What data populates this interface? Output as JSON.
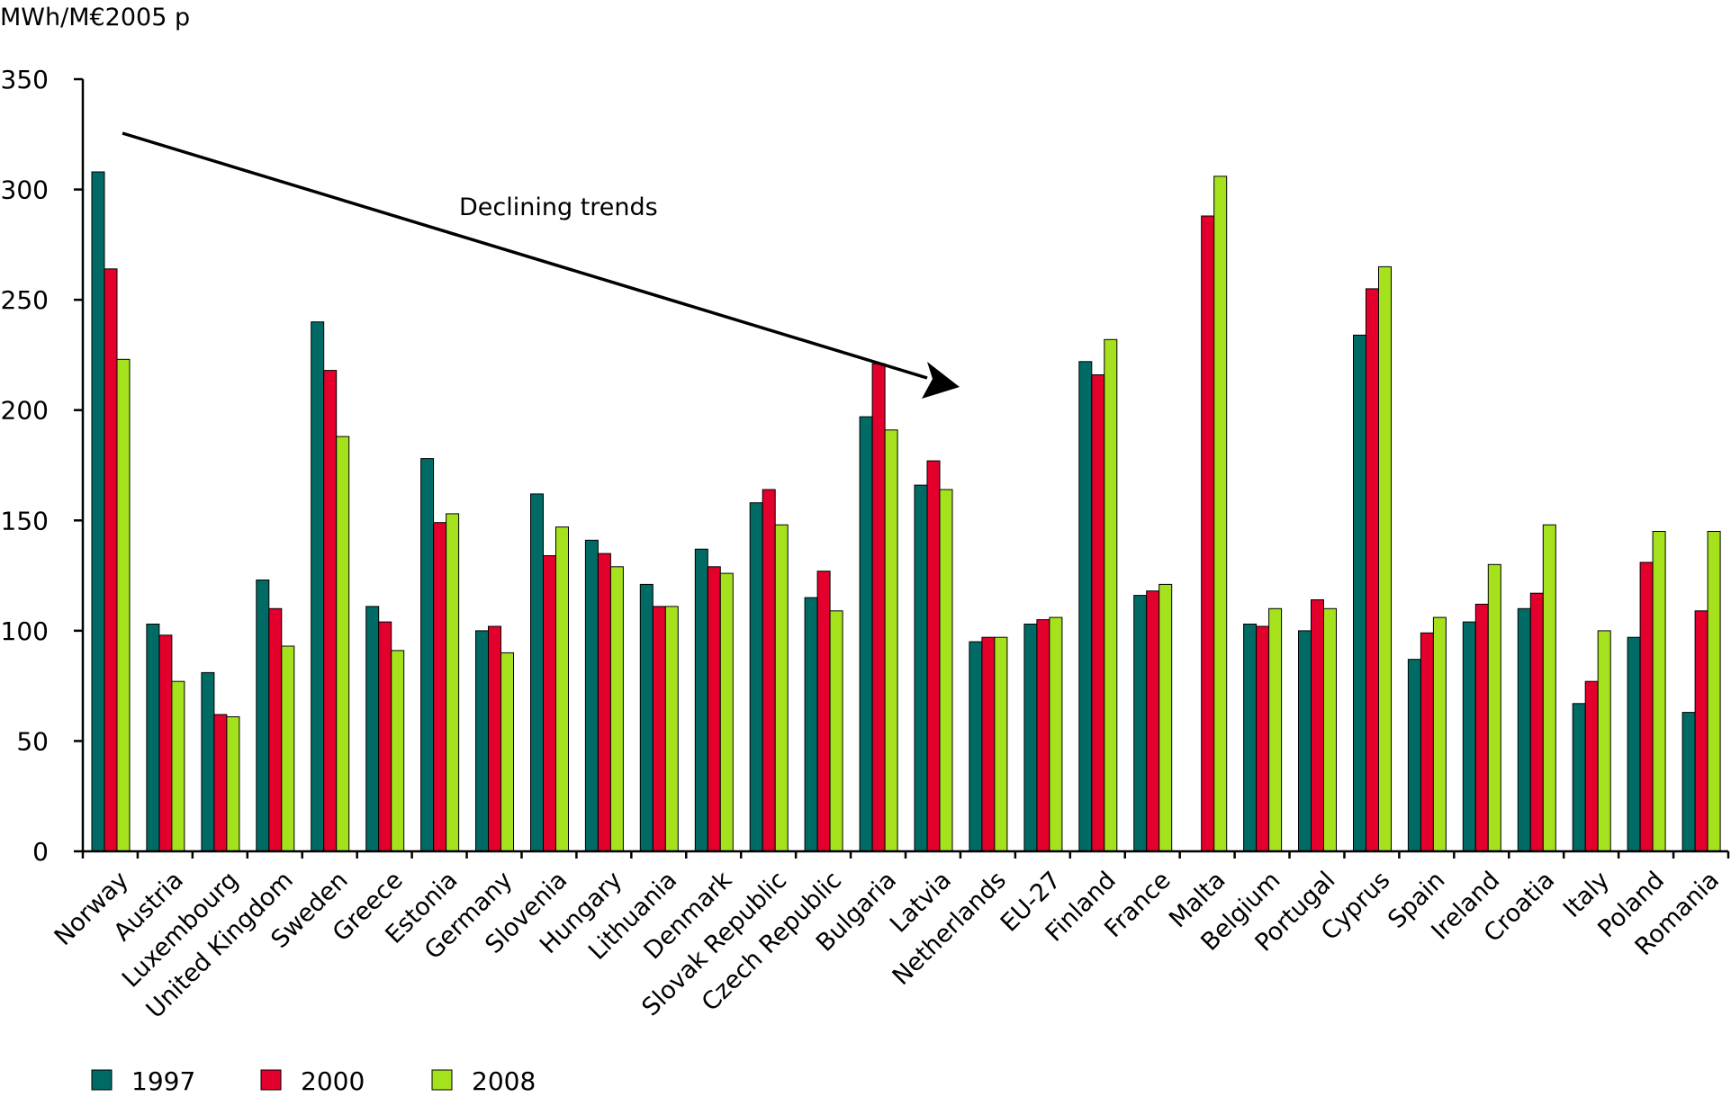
{
  "chart_data": {
    "type": "bar",
    "ylabel": "MWh/M€2005 p",
    "ylim": [
      0,
      350
    ],
    "yticks": [
      0,
      50,
      100,
      150,
      200,
      250,
      300,
      350
    ],
    "grid": false,
    "legend_position": "bottom-left",
    "annotation": "Declining trends",
    "categories": [
      "Norway",
      "Austria",
      "Luxembourg",
      "United Kingdom",
      "Sweden",
      "Greece",
      "Estonia",
      "Germany",
      "Slovenia",
      "Hungary",
      "Lithuania",
      "Denmark",
      "Slovak Republic",
      "Czech Republic",
      "Bulgaria",
      "Latvia",
      "Netherlands",
      "EU-27",
      "Finland",
      "France",
      "Malta",
      "Belgium",
      "Portugal",
      "Cyprus",
      "Spain",
      "Ireland",
      "Croatia",
      "Italy",
      "Poland",
      "Romania"
    ],
    "series": [
      {
        "name": "1997",
        "color": "#006a64",
        "values": [
          308,
          103,
          81,
          123,
          240,
          111,
          178,
          100,
          162,
          141,
          121,
          137,
          158,
          115,
          197,
          166,
          95,
          103,
          222,
          116,
          null,
          103,
          100,
          234,
          87,
          104,
          110,
          67,
          97,
          63
        ]
      },
      {
        "name": "2000",
        "color": "#e3002d",
        "values": [
          264,
          98,
          62,
          110,
          218,
          104,
          149,
          102,
          134,
          135,
          111,
          129,
          164,
          127,
          221,
          177,
          97,
          105,
          216,
          118,
          288,
          102,
          114,
          255,
          99,
          112,
          117,
          77,
          131,
          109
        ]
      },
      {
        "name": "2008",
        "color": "#a5e21d",
        "values": [
          223,
          77,
          61,
          93,
          188,
          91,
          153,
          90,
          147,
          129,
          111,
          126,
          148,
          109,
          191,
          164,
          97,
          106,
          232,
          121,
          306,
          110,
          110,
          265,
          106,
          130,
          148,
          100,
          145,
          145
        ]
      }
    ]
  }
}
